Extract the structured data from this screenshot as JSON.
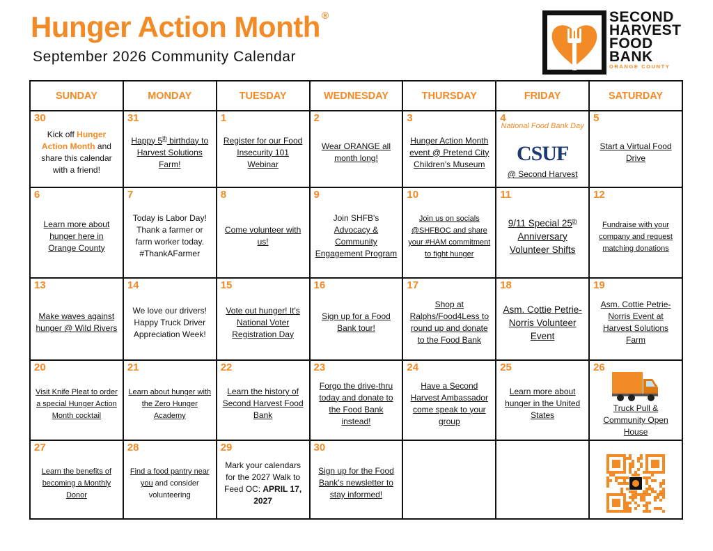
{
  "header": {
    "title": "Hunger Action Month",
    "mark": "®",
    "subtitle": "September 2026 Community Calendar"
  },
  "logo": {
    "lines": [
      "SECOND",
      "HARVEST",
      "FOOD",
      "BANK"
    ],
    "region": "ORANGE COUNTY"
  },
  "calendar": {
    "days": [
      "SUNDAY",
      "MONDAY",
      "TUESDAY",
      "WEDNESDAY",
      "THURSDAY",
      "FRIDAY",
      "SATURDAY"
    ],
    "weeks": [
      [
        {
          "date": "30",
          "parts": [
            {
              "text": "Kick off "
            },
            {
              "text": "Hunger Action Month",
              "style": "orange-bold"
            },
            {
              "text": " and share this calendar with a friend!"
            }
          ]
        },
        {
          "date": "31",
          "parts": [
            {
              "text": "Happy 5",
              "style": "link"
            },
            {
              "text": "th",
              "style": "link-sup"
            },
            {
              "text": " birthday to Harvest Solutions Farm!",
              "style": "link"
            }
          ]
        },
        {
          "date": "1",
          "parts": [
            {
              "text": "Register for our Food Insecurity 101 Webinar",
              "style": "link"
            }
          ]
        },
        {
          "date": "2",
          "parts": [
            {
              "text": "Wear ORANGE all month long!",
              "style": "link"
            }
          ]
        },
        {
          "date": "3",
          "parts": [
            {
              "text": "Hunger Action Month event @ Pretend City Children's Museum",
              "style": "link"
            }
          ]
        },
        {
          "date": "4",
          "parts": [
            {
              "text": "National Food Bank Day",
              "style": "italic-orange"
            },
            {
              "text": "CSUF",
              "style": "csuf"
            },
            {
              "text": "@ Second Harvest",
              "style": "link"
            }
          ]
        },
        {
          "date": "5",
          "parts": [
            {
              "text": "Start a Virtual Food Drive",
              "style": "link"
            }
          ]
        }
      ],
      [
        {
          "date": "6",
          "parts": [
            {
              "text": "Learn more about hunger here in Orange County",
              "style": "link"
            }
          ]
        },
        {
          "date": "7",
          "parts": [
            {
              "text": "Today is Labor Day! Thank a farmer or farm worker today. #ThankAFarmer"
            }
          ]
        },
        {
          "date": "8",
          "parts": [
            {
              "text": "Come volunteer with us!",
              "style": "link"
            }
          ]
        },
        {
          "date": "9",
          "parts": [
            {
              "text": "Join SHFB's "
            },
            {
              "text": "Advocacy & Community Engagement Program",
              "style": "link"
            }
          ]
        },
        {
          "date": "10",
          "parts": [
            {
              "text": "Join us on socials @SHFBOC and share your #HAM commitment to fight hunger",
              "style": "link-small"
            }
          ]
        },
        {
          "date": "11",
          "parts": [
            {
              "text": "9/11 Special 25",
              "style": "link-large"
            },
            {
              "text": "th",
              "style": "link-sup"
            },
            {
              "text": " Anniversary Volunteer Shifts",
              "style": "link-large"
            }
          ]
        },
        {
          "date": "12",
          "parts": [
            {
              "text": "Fundraise with your company and request matching donations",
              "style": "link-small"
            }
          ]
        }
      ],
      [
        {
          "date": "13",
          "parts": [
            {
              "text": "Make waves against hunger @ Wild Rivers",
              "style": "link"
            }
          ]
        },
        {
          "date": "14",
          "parts": [
            {
              "text": "We love our drivers! Happy Truck Driver Appreciation Week!"
            }
          ]
        },
        {
          "date": "15",
          "parts": [
            {
              "text": "Vote out hunger! It's National Voter Registration Day",
              "style": "link"
            }
          ]
        },
        {
          "date": "16",
          "parts": [
            {
              "text": "Sign up for a Food Bank tour!",
              "style": "link"
            }
          ]
        },
        {
          "date": "17",
          "parts": [
            {
              "text": "Shop at Ralphs/Food4Less to round up and donate to the Food Bank",
              "style": "link"
            }
          ]
        },
        {
          "date": "18",
          "parts": [
            {
              "text": "Asm. Cottie Petrie-Norris Volunteer Event",
              "style": "link-large"
            }
          ]
        },
        {
          "date": "19",
          "parts": [
            {
              "text": "Asm. Cottie Petrie-Norris Event at Harvest Solutions Farm",
              "style": "link"
            }
          ]
        }
      ],
      [
        {
          "date": "20",
          "parts": [
            {
              "text": "Visit Knife Pleat to order a special Hunger Action Month cocktail",
              "style": "link-small"
            }
          ]
        },
        {
          "date": "21",
          "parts": [
            {
              "text": "Learn about hunger with the Zero Hunger Academy",
              "style": "link-small"
            }
          ]
        },
        {
          "date": "22",
          "parts": [
            {
              "text": "Learn the history of Second Harvest Food Bank",
              "style": "link"
            }
          ]
        },
        {
          "date": "23",
          "parts": [
            {
              "text": "Forgo the drive-thru today and donate to the Food Bank instead!",
              "style": "link"
            }
          ]
        },
        {
          "date": "24",
          "parts": [
            {
              "text": "Have a Second Harvest Ambassador come speak to your group",
              "style": "link"
            }
          ]
        },
        {
          "date": "25",
          "parts": [
            {
              "text": "Learn more about hunger in the United States",
              "style": "link"
            }
          ]
        },
        {
          "date": "26",
          "image": "truck",
          "parts": [
            {
              "text": "Truck Pull & Community Open House",
              "style": "link"
            }
          ]
        }
      ],
      [
        {
          "date": "27",
          "parts": [
            {
              "text": "Learn the benefits of becoming a Monthly Donor",
              "style": "link-small"
            }
          ]
        },
        {
          "date": "28",
          "parts": [
            {
              "text": "Find a food pantry near you",
              "style": "link-small"
            },
            {
              "text": " and consider volunteering",
              "style": "small"
            }
          ]
        },
        {
          "date": "29",
          "parts": [
            {
              "text": "Mark your calendars for the 2027 Walk to Feed OC: "
            },
            {
              "text": "APRIL 17, 2027",
              "style": "bold"
            }
          ]
        },
        {
          "date": "30",
          "parts": [
            {
              "text": "Sign up for the Food Bank's newsletter to stay informed!",
              "style": "link"
            }
          ]
        },
        null,
        null,
        {
          "image": "qr"
        }
      ]
    ]
  }
}
